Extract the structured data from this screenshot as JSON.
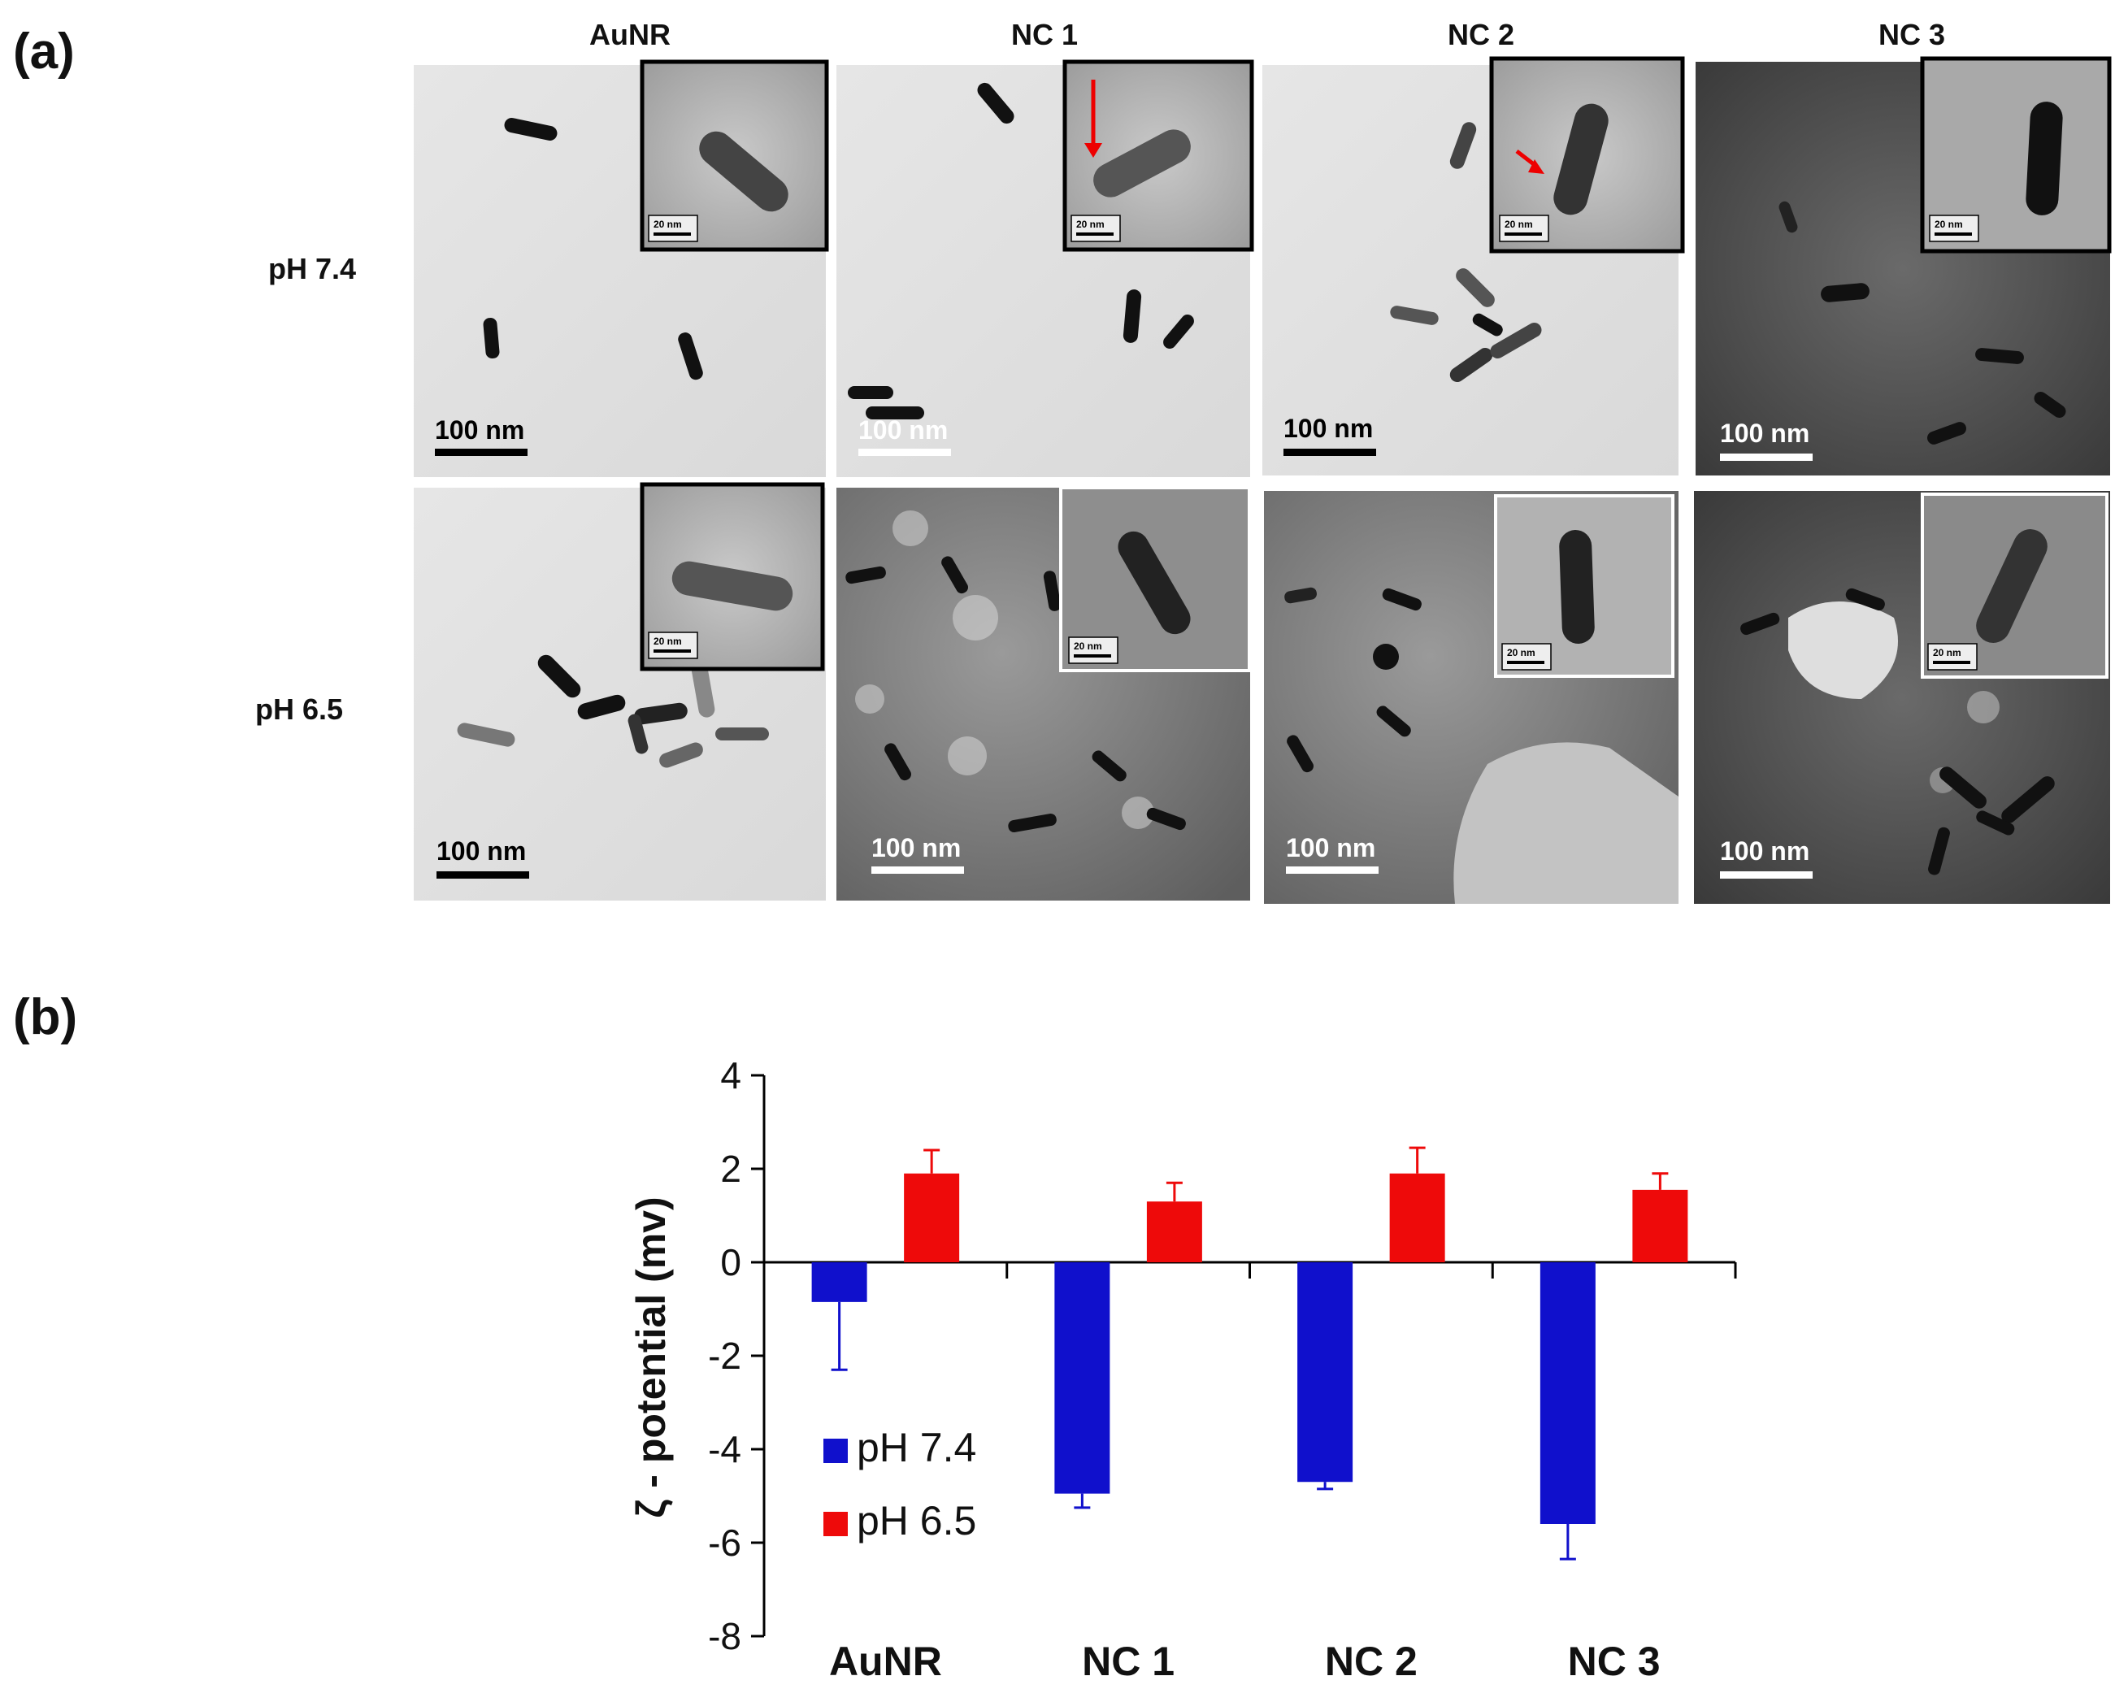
{
  "panel_a": {
    "label": "(a)",
    "columns": [
      "AuNR",
      "NC 1",
      "NC 2",
      "NC 3"
    ],
    "rows": [
      "pH 7.4",
      "pH 6.5"
    ],
    "scale_bar_main": "100 nm",
    "scale_bar_inset": "20 nm"
  },
  "panel_b": {
    "label": "(b)"
  },
  "chart_data": {
    "type": "bar",
    "categories": [
      "AuNR",
      "NC 1",
      "NC 2",
      "NC 3"
    ],
    "series": [
      {
        "name": "pH 7.4",
        "color": "#1010cc",
        "values": [
          -0.85,
          -4.95,
          -4.7,
          -5.6
        ],
        "errors": [
          1.45,
          0.3,
          0.15,
          0.75
        ]
      },
      {
        "name": "pH 6.5",
        "color": "#ee0a0a",
        "values": [
          1.9,
          1.3,
          1.9,
          1.55
        ],
        "errors": [
          0.5,
          0.4,
          0.55,
          0.35
        ]
      }
    ],
    "ylabel": "ζ - potential (mv)",
    "ylim": [
      -8,
      4
    ],
    "yticks": [
      4,
      2,
      0,
      -2,
      -4,
      -6,
      -8
    ],
    "legend_position": "lower-left"
  }
}
